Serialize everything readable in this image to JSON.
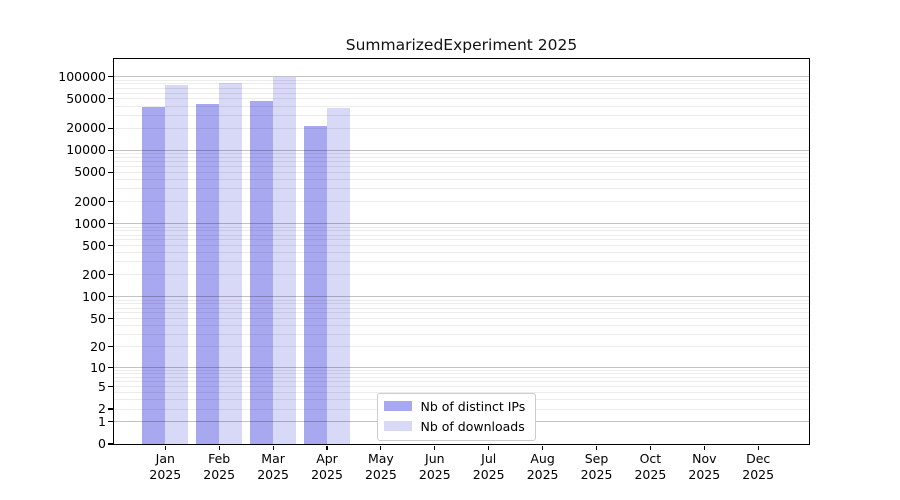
{
  "title": "SummarizedExperiment 2025",
  "chart_data": {
    "type": "bar",
    "title": "SummarizedExperiment 2025",
    "categories": [
      "Jan",
      "Feb",
      "Mar",
      "Apr",
      "May",
      "Jun",
      "Jul",
      "Aug",
      "Sep",
      "Oct",
      "Nov",
      "Dec"
    ],
    "x_year_label": "2025",
    "series": [
      {
        "name": "Nb of distinct IPs",
        "color": "#a8a8f0",
        "values": [
          38000,
          42000,
          46000,
          21000,
          null,
          null,
          null,
          null,
          null,
          null,
          null,
          null
        ]
      },
      {
        "name": "Nb of downloads",
        "color": "#d8d8f7",
        "values": [
          75000,
          82000,
          97000,
          37000,
          null,
          null,
          null,
          null,
          null,
          null,
          null,
          null
        ]
      }
    ],
    "yscale": "log10(1+x)",
    "y_tick_values": [
      0,
      1,
      2,
      5,
      10,
      20,
      50,
      100,
      200,
      500,
      1000,
      2000,
      5000,
      10000,
      20000,
      50000,
      100000
    ],
    "ylim": [
      0,
      175000
    ],
    "grid": "horizontal, major and minor",
    "legend_position": "inside bottom-center"
  },
  "colors": {
    "bar_distinct_ips": "#a8a8f0",
    "bar_downloads": "#d8d8f7",
    "grid_major": "#c3c3c3",
    "grid_minor": "#ececec",
    "spine": "#000000",
    "legend_border": "#cccccc",
    "background": "#ffffff"
  }
}
